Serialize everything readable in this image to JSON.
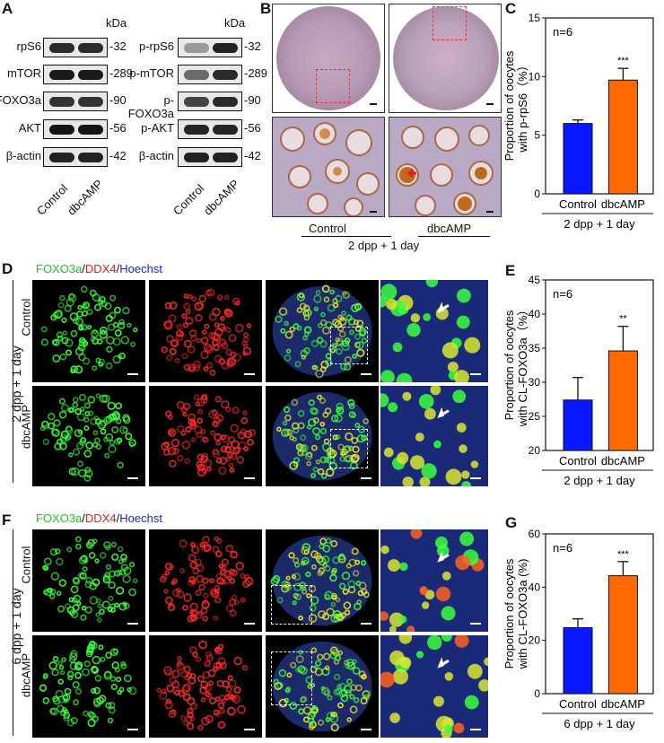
{
  "panels": {
    "A": "A",
    "B": "B",
    "C": "C",
    "D": "D",
    "E": "E",
    "F": "F",
    "G": "G"
  },
  "blotA_left": {
    "kda_header": "kDa",
    "rows": [
      {
        "protein": "rpS6",
        "kda": "32"
      },
      {
        "protein": "mTOR",
        "kda": "289"
      },
      {
        "protein": "FOXO3a",
        "kda": "90"
      },
      {
        "protein": "AKT",
        "kda": "56"
      },
      {
        "protein": "β-actin",
        "kda": "42"
      }
    ],
    "lanes": [
      "Control",
      "dbcAMP"
    ]
  },
  "blotA_right": {
    "kda_header": "kDa",
    "rows": [
      {
        "protein": "p-rpS6",
        "kda": "32"
      },
      {
        "protein": "p-mTOR",
        "kda": "289"
      },
      {
        "protein": "p-FOXO3a",
        "kda": "90"
      },
      {
        "protein": "p-AKT",
        "kda": "56"
      },
      {
        "protein": "β-actin",
        "kda": "42"
      }
    ],
    "lanes": [
      "Control",
      "dbcAMP"
    ]
  },
  "panelB": {
    "group_labels": [
      "Control",
      "dbcAMP"
    ],
    "condition": "2 dpp + 1 day"
  },
  "panelD": {
    "legend": {
      "part1": "FOXO3a",
      "sep1": "/",
      "part2": "DDX4",
      "sep2": "/",
      "part3": "Hoechst"
    },
    "condition": "2 dpp + 1 day",
    "rows": [
      "Control",
      "dbcAMP"
    ]
  },
  "panelF": {
    "legend": {
      "part1": "FOXO3a",
      "sep1": "/",
      "part2": "DDX4",
      "sep2": "/",
      "part3": "Hoechst"
    },
    "condition": "6 dpp + 1 day",
    "rows": [
      "Control",
      "dbcAMP"
    ]
  },
  "colors": {
    "control": "#0a18ff",
    "dbcAMP": "#ff6a00",
    "green": "#3cff3c",
    "red": "#ff2a2a",
    "blue": "#2a4cff"
  },
  "chart_data": [
    {
      "id": "C",
      "type": "bar",
      "categories": [
        "Control",
        "dbcAMP"
      ],
      "values": [
        6.0,
        9.7
      ],
      "errors": [
        0.3,
        1.0
      ],
      "ylabel": "Proportion of oocytes with p-rpS6（%）",
      "ylim": [
        0,
        15
      ],
      "yticks": [
        0,
        5,
        10,
        15
      ],
      "annotation": "n=6",
      "sig": [
        "",
        "***"
      ],
      "condition": "2 dpp + 1 day"
    },
    {
      "id": "E",
      "type": "bar",
      "categories": [
        "Control",
        "dbcAMP"
      ],
      "values": [
        27.4,
        34.6
      ],
      "errors": [
        3.3,
        3.6
      ],
      "ylabel": "Proportion of oocytes with CL-FOXO3a（%）",
      "ylim": [
        20,
        45
      ],
      "yticks": [
        20,
        25,
        30,
        35,
        40,
        45
      ],
      "annotation": "n=6",
      "sig": [
        "",
        "**"
      ],
      "condition": "2 dpp + 1 day"
    },
    {
      "id": "G",
      "type": "bar",
      "categories": [
        "Control",
        "dbcAMP"
      ],
      "values": [
        24.8,
        44.3
      ],
      "errors": [
        3.3,
        5.3
      ],
      "ylabel": "Proportion of oocytes with CL-FOXO3a (%)",
      "ylim": [
        0,
        60
      ],
      "yticks": [
        0,
        20,
        40,
        60
      ],
      "annotation": "n=6",
      "sig": [
        "",
        "***"
      ],
      "condition": "6 dpp + 1 day"
    }
  ]
}
